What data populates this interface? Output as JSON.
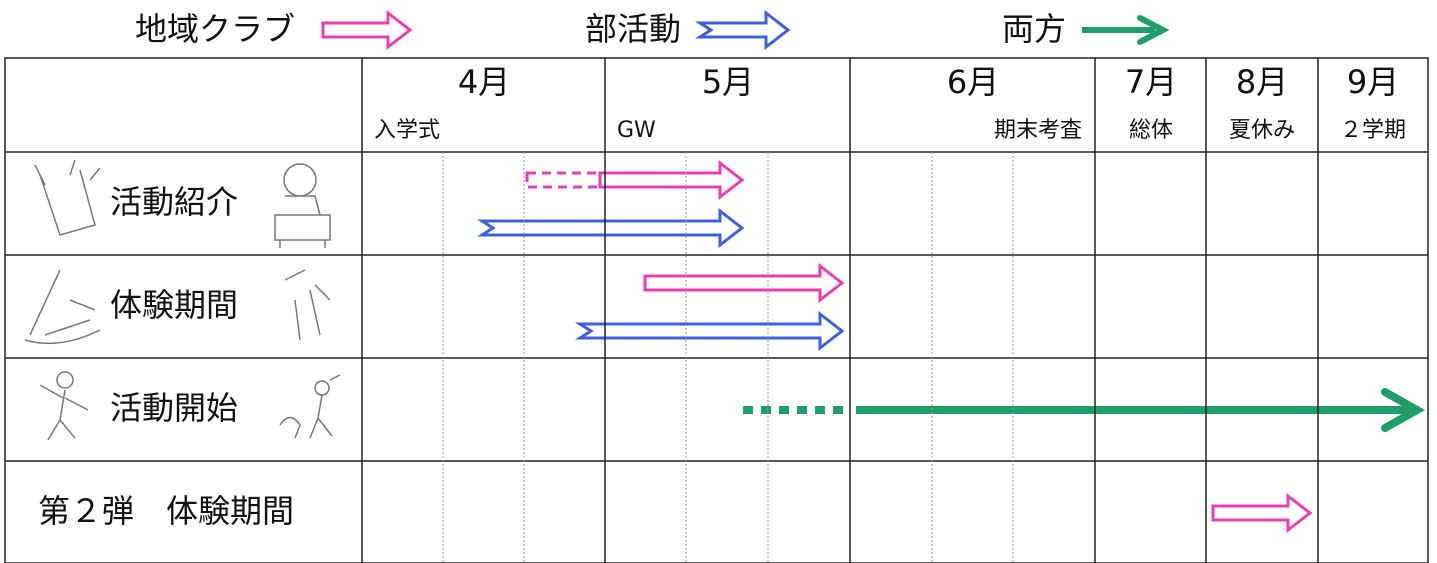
{
  "legend": {
    "club": "地域クラブ",
    "bukatsu": "部活動",
    "both": "両方"
  },
  "header": {
    "months": [
      "4月",
      "5月",
      "6月",
      "7月",
      "8月",
      "9月"
    ],
    "events": [
      "入学式",
      "GW",
      "期末考査",
      "総体",
      "夏休み",
      "２学期"
    ]
  },
  "rows": [
    "活動紹介",
    "体験期間",
    "活動開始",
    "第２弾　体験期間"
  ]
}
